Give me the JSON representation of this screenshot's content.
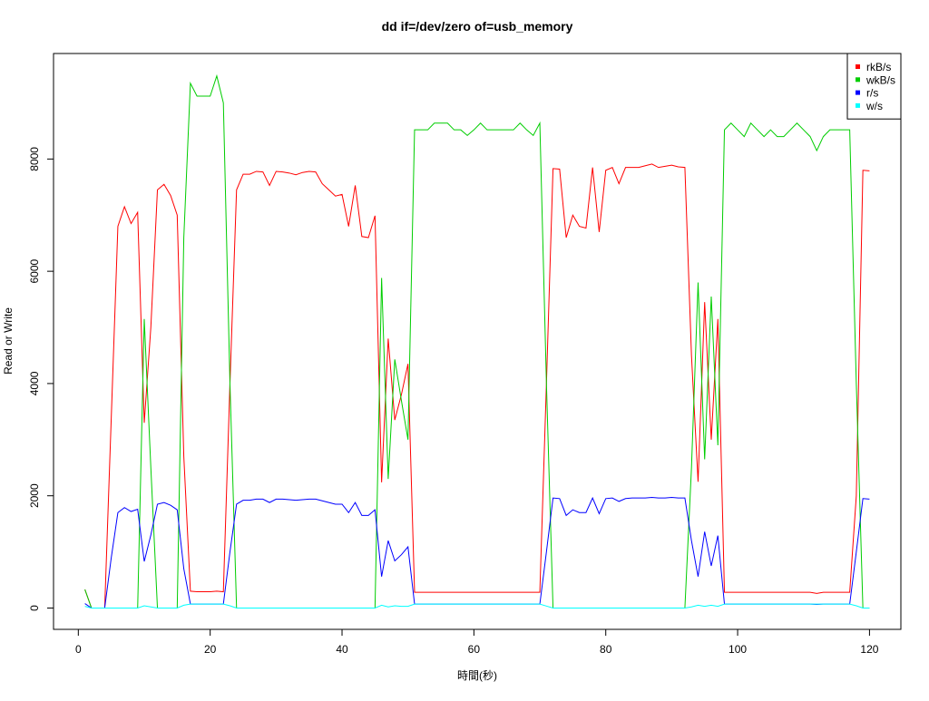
{
  "chart_data": {
    "type": "line",
    "title": "dd if=/dev/zero of=usb_memory",
    "xlabel": "時間(秒)",
    "ylabel": "Read or Write",
    "x": [
      1,
      2,
      3,
      4,
      5,
      6,
      7,
      8,
      9,
      10,
      11,
      12,
      13,
      14,
      15,
      16,
      17,
      18,
      19,
      20,
      21,
      22,
      23,
      24,
      25,
      26,
      27,
      28,
      29,
      30,
      31,
      32,
      33,
      34,
      35,
      36,
      37,
      38,
      39,
      40,
      41,
      42,
      43,
      44,
      45,
      46,
      47,
      48,
      49,
      50,
      51,
      52,
      53,
      54,
      55,
      56,
      57,
      58,
      59,
      60,
      61,
      62,
      63,
      64,
      65,
      66,
      67,
      68,
      69,
      70,
      71,
      72,
      73,
      74,
      75,
      76,
      77,
      78,
      79,
      80,
      81,
      82,
      83,
      84,
      85,
      86,
      87,
      88,
      89,
      90,
      91,
      92,
      93,
      94,
      95,
      96,
      97,
      98,
      99,
      100,
      101,
      102,
      103,
      104,
      105,
      106,
      107,
      108,
      109,
      110,
      111,
      112,
      113,
      114,
      115,
      116,
      117,
      118,
      119,
      120
    ],
    "series": [
      {
        "name": "rkB/s",
        "color": "#ff0000",
        "values": [
          330,
          0,
          0,
          0,
          3400,
          6800,
          7150,
          6850,
          7050,
          3300,
          5000,
          7450,
          7550,
          7350,
          7000,
          2700,
          300,
          290,
          290,
          290,
          300,
          290,
          4000,
          7450,
          7730,
          7730,
          7780,
          7770,
          7530,
          7780,
          7770,
          7750,
          7720,
          7760,
          7780,
          7770,
          7560,
          7450,
          7340,
          7370,
          6800,
          7530,
          6620,
          6600,
          6990,
          2240,
          4800,
          3350,
          3800,
          4350,
          280,
          280,
          280,
          280,
          280,
          280,
          280,
          280,
          280,
          280,
          280,
          280,
          280,
          280,
          280,
          280,
          280,
          280,
          280,
          280,
          4000,
          7830,
          7820,
          6600,
          7000,
          6800,
          6770,
          7850,
          6700,
          7800,
          7850,
          7560,
          7850,
          7850,
          7850,
          7880,
          7910,
          7850,
          7870,
          7890,
          7860,
          7850,
          4500,
          2250,
          5450,
          3000,
          5150,
          280,
          280,
          280,
          280,
          280,
          280,
          280,
          280,
          280,
          280,
          280,
          280,
          280,
          280,
          260,
          280,
          280,
          280,
          280,
          280,
          2000,
          7800,
          7790
        ]
      },
      {
        "name": "wkB/s",
        "color": "#00cd00",
        "values": [
          330,
          0,
          0,
          0,
          0,
          0,
          0,
          0,
          0,
          5150,
          2500,
          0,
          0,
          0,
          0,
          6600,
          9350,
          9120,
          9120,
          9120,
          9480,
          9000,
          4000,
          0,
          0,
          0,
          0,
          0,
          0,
          0,
          0,
          0,
          0,
          0,
          0,
          0,
          0,
          0,
          0,
          0,
          0,
          0,
          0,
          0,
          0,
          5880,
          2300,
          4430,
          3700,
          3000,
          8520,
          8520,
          8520,
          8640,
          8640,
          8640,
          8520,
          8520,
          8420,
          8520,
          8640,
          8520,
          8520,
          8520,
          8520,
          8520,
          8640,
          8520,
          8420,
          8640,
          4000,
          0,
          0,
          0,
          0,
          0,
          0,
          0,
          0,
          0,
          0,
          0,
          0,
          0,
          0,
          0,
          0,
          0,
          0,
          0,
          0,
          0,
          2500,
          5800,
          2650,
          5550,
          2900,
          8520,
          8640,
          8520,
          8400,
          8640,
          8520,
          8400,
          8520,
          8400,
          8400,
          8520,
          8640,
          8520,
          8400,
          8150,
          8400,
          8520,
          8520,
          8520,
          8520,
          4000,
          0,
          0
        ]
      },
      {
        "name": "r/s",
        "color": "#0000ff",
        "values": [
          80,
          0,
          0,
          0,
          900,
          1700,
          1790,
          1720,
          1760,
          830,
          1300,
          1850,
          1880,
          1830,
          1750,
          700,
          70,
          70,
          70,
          70,
          70,
          70,
          1000,
          1850,
          1920,
          1920,
          1940,
          1940,
          1880,
          1940,
          1940,
          1930,
          1920,
          1930,
          1940,
          1940,
          1910,
          1880,
          1850,
          1850,
          1700,
          1880,
          1650,
          1650,
          1750,
          560,
          1200,
          840,
          950,
          1090,
          70,
          70,
          70,
          70,
          70,
          70,
          70,
          70,
          70,
          70,
          70,
          70,
          70,
          70,
          70,
          70,
          70,
          70,
          70,
          70,
          1000,
          1960,
          1950,
          1650,
          1750,
          1700,
          1700,
          1960,
          1680,
          1950,
          1960,
          1900,
          1950,
          1960,
          1960,
          1960,
          1970,
          1960,
          1960,
          1970,
          1960,
          1960,
          1200,
          560,
          1360,
          750,
          1290,
          70,
          70,
          70,
          70,
          70,
          70,
          70,
          70,
          70,
          70,
          70,
          70,
          70,
          70,
          65,
          70,
          70,
          70,
          70,
          70,
          1000,
          1950,
          1940
        ]
      },
      {
        "name": "w/s",
        "color": "#00ffff",
        "values": [
          30,
          0,
          0,
          0,
          0,
          0,
          0,
          0,
          0,
          40,
          20,
          0,
          0,
          0,
          0,
          50,
          70,
          70,
          70,
          70,
          70,
          70,
          40,
          0,
          0,
          0,
          0,
          0,
          0,
          0,
          0,
          0,
          0,
          0,
          0,
          0,
          0,
          0,
          0,
          0,
          0,
          0,
          0,
          0,
          0,
          50,
          20,
          40,
          30,
          30,
          70,
          70,
          70,
          70,
          70,
          70,
          70,
          70,
          70,
          70,
          70,
          70,
          70,
          70,
          70,
          70,
          70,
          70,
          70,
          70,
          35,
          0,
          0,
          0,
          0,
          0,
          0,
          0,
          0,
          0,
          0,
          0,
          0,
          0,
          0,
          0,
          0,
          0,
          0,
          0,
          0,
          0,
          20,
          50,
          30,
          50,
          30,
          70,
          70,
          70,
          70,
          70,
          70,
          70,
          70,
          70,
          70,
          70,
          70,
          70,
          70,
          70,
          70,
          70,
          70,
          70,
          70,
          40,
          0,
          0
        ]
      }
    ],
    "xlim": [
      -3.76,
      124.76
    ],
    "ylim": [
      -380,
      9880
    ],
    "xticks": [
      0,
      20,
      40,
      60,
      80,
      100,
      120
    ],
    "yticks": [
      0,
      2000,
      4000,
      6000,
      8000
    ],
    "legend": "top-right"
  }
}
